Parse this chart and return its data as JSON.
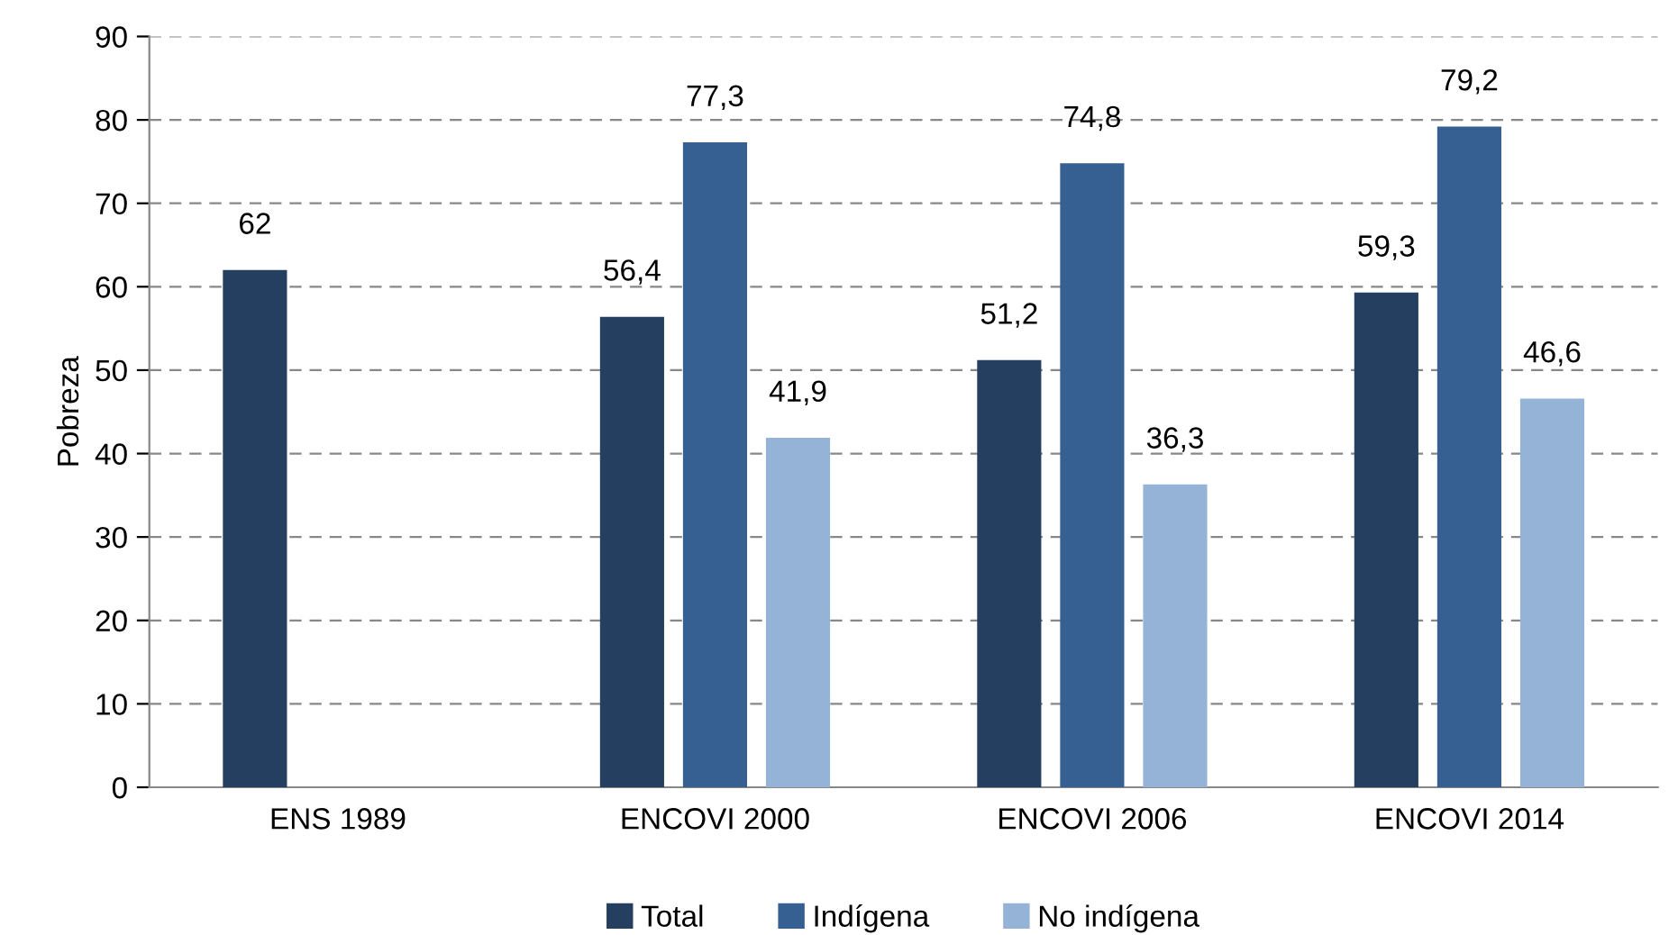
{
  "chart_data": {
    "type": "bar",
    "ylabel": "Pobreza",
    "categories": [
      "ENS 1989",
      "ENCOVI 2000",
      "ENCOVI 2006",
      "ENCOVI 2014"
    ],
    "series": [
      {
        "name": "Total",
        "color": "#243f60",
        "values": [
          62,
          56.4,
          51.2,
          59.3
        ],
        "value_labels": [
          "62",
          "56,4",
          "51,2",
          "59,3"
        ]
      },
      {
        "name": "Indígena",
        "color": "#366092",
        "values": [
          null,
          77.3,
          74.8,
          79.2
        ],
        "value_labels": [
          null,
          "77,3",
          "74,8",
          "79,2"
        ]
      },
      {
        "name": "No indígena",
        "color": "#95b3d7",
        "values": [
          null,
          41.9,
          36.3,
          46.6
        ],
        "value_labels": [
          null,
          "41,9",
          "36,3",
          "46,6"
        ]
      }
    ],
    "ylim": [
      0,
      90
    ],
    "yticks": [
      0,
      10,
      20,
      30,
      40,
      50,
      60,
      70,
      80,
      90
    ],
    "grid": "y",
    "line_style": "dashed",
    "legend": "bottom"
  }
}
